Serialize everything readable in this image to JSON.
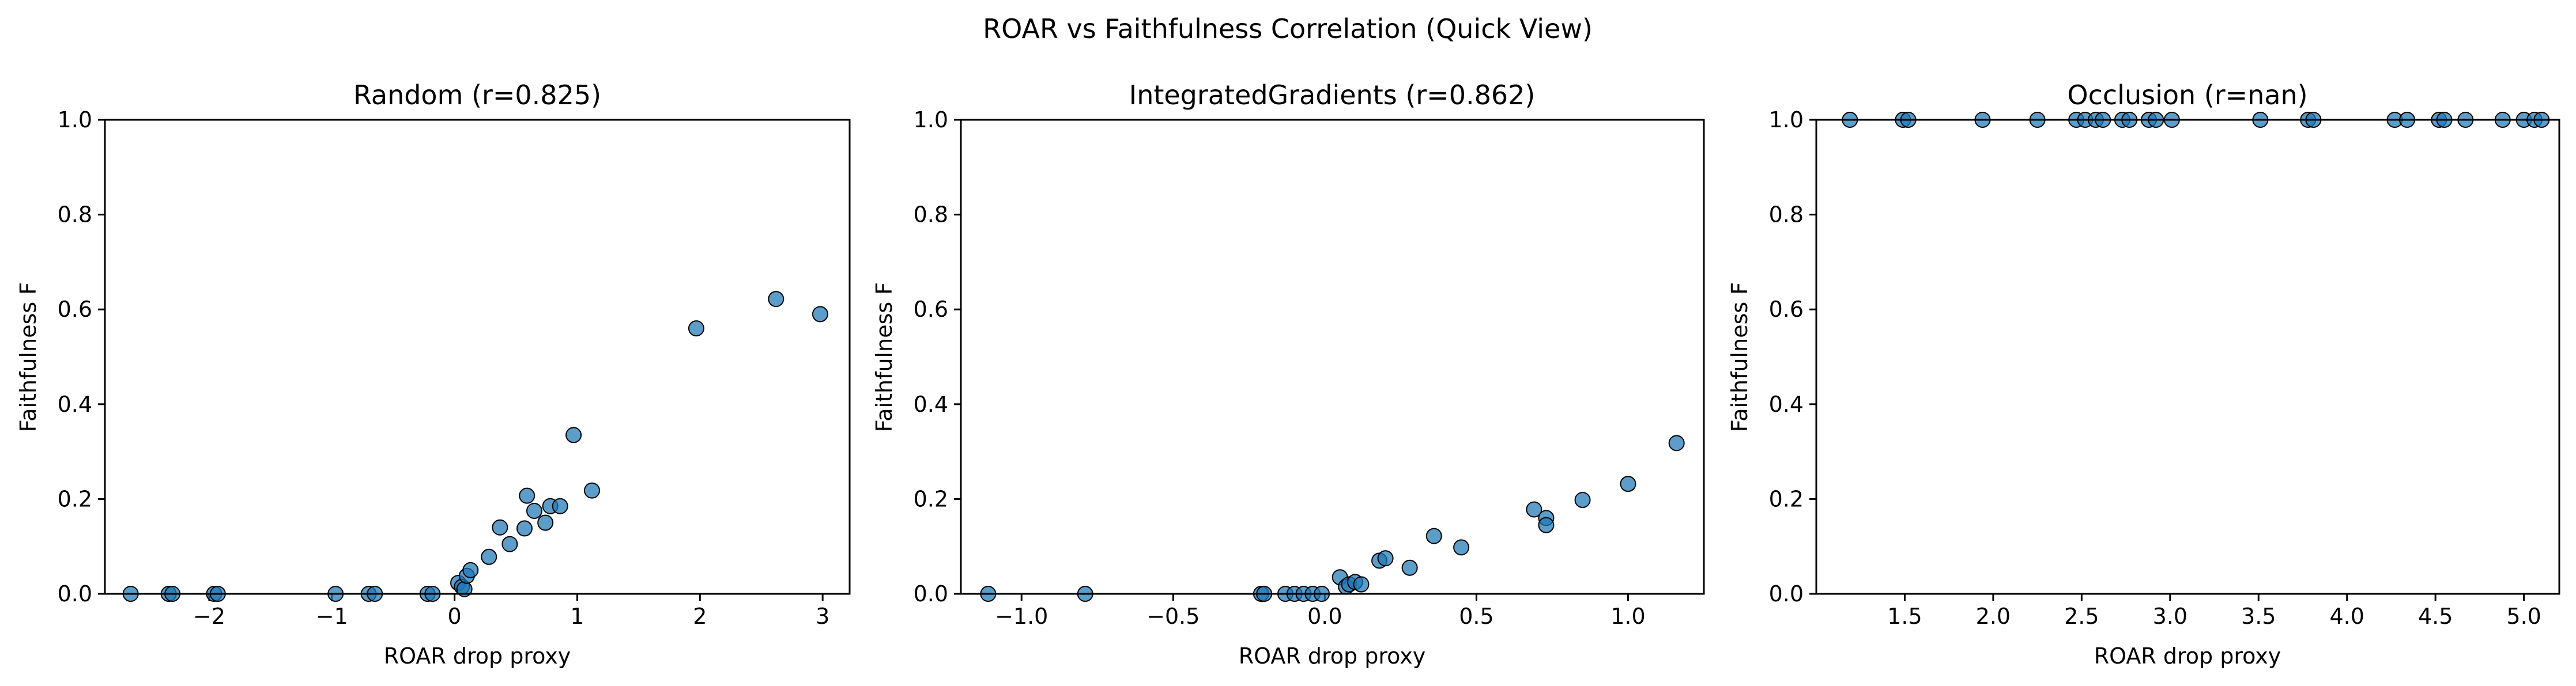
{
  "figure": {
    "suptitle": "ROAR vs Faithfulness Correlation (Quick View)"
  },
  "chart_data": [
    {
      "type": "scatter",
      "title": "Random (r=0.825)",
      "xlabel": "ROAR drop proxy",
      "ylabel": "Faithfulness F",
      "xlim": [
        -2.85,
        3.22
      ],
      "ylim": [
        0,
        1
      ],
      "xticks": [
        -2,
        -1,
        0,
        1,
        2,
        3
      ],
      "xtick_labels": [
        "−2",
        "−1",
        "0",
        "1",
        "2",
        "3"
      ],
      "yticks": [
        0,
        0.2,
        0.4,
        0.6,
        0.8,
        1.0
      ],
      "ytick_labels": [
        "0.0",
        "0.2",
        "0.4",
        "0.6",
        "0.8",
        "1.0"
      ],
      "marker_color": "#1f77b4",
      "points": [
        {
          "x": -2.64,
          "y": 0.0
        },
        {
          "x": -2.33,
          "y": 0.0
        },
        {
          "x": -2.3,
          "y": 0.0
        },
        {
          "x": -1.96,
          "y": 0.0
        },
        {
          "x": -1.93,
          "y": 0.0
        },
        {
          "x": -0.97,
          "y": 0.0
        },
        {
          "x": -0.7,
          "y": 0.0
        },
        {
          "x": -0.65,
          "y": 0.0
        },
        {
          "x": -0.22,
          "y": 0.0
        },
        {
          "x": -0.18,
          "y": 0.0
        },
        {
          "x": 0.03,
          "y": 0.023
        },
        {
          "x": 0.06,
          "y": 0.015
        },
        {
          "x": 0.08,
          "y": 0.01
        },
        {
          "x": 0.1,
          "y": 0.038
        },
        {
          "x": 0.13,
          "y": 0.05
        },
        {
          "x": 0.28,
          "y": 0.078
        },
        {
          "x": 0.37,
          "y": 0.14
        },
        {
          "x": 0.45,
          "y": 0.105
        },
        {
          "x": 0.57,
          "y": 0.138
        },
        {
          "x": 0.59,
          "y": 0.207
        },
        {
          "x": 0.65,
          "y": 0.175
        },
        {
          "x": 0.74,
          "y": 0.15
        },
        {
          "x": 0.78,
          "y": 0.185
        },
        {
          "x": 0.86,
          "y": 0.185
        },
        {
          "x": 0.97,
          "y": 0.335
        },
        {
          "x": 1.12,
          "y": 0.218
        },
        {
          "x": 1.97,
          "y": 0.56
        },
        {
          "x": 2.62,
          "y": 0.622
        },
        {
          "x": 2.98,
          "y": 0.59
        }
      ]
    },
    {
      "type": "scatter",
      "title": "IntegratedGradients (r=0.862)",
      "xlabel": "ROAR drop proxy",
      "ylabel": "Faithfulness F",
      "xlim": [
        -1.2,
        1.25
      ],
      "ylim": [
        0,
        1
      ],
      "xticks": [
        -1.0,
        -0.5,
        0.0,
        0.5,
        1.0
      ],
      "xtick_labels": [
        "−1.0",
        "−0.5",
        "0.0",
        "0.5",
        "1.0"
      ],
      "yticks": [
        0,
        0.2,
        0.4,
        0.6,
        0.8,
        1.0
      ],
      "ytick_labels": [
        "0.0",
        "0.2",
        "0.4",
        "0.6",
        "0.8",
        "1.0"
      ],
      "marker_color": "#1f77b4",
      "points": [
        {
          "x": -1.11,
          "y": 0.0
        },
        {
          "x": -0.79,
          "y": 0.0
        },
        {
          "x": -0.21,
          "y": 0.0
        },
        {
          "x": -0.2,
          "y": 0.0
        },
        {
          "x": -0.13,
          "y": 0.0
        },
        {
          "x": -0.1,
          "y": 0.0
        },
        {
          "x": -0.07,
          "y": 0.0
        },
        {
          "x": -0.04,
          "y": 0.0
        },
        {
          "x": -0.01,
          "y": 0.0
        },
        {
          "x": 0.05,
          "y": 0.035
        },
        {
          "x": 0.07,
          "y": 0.015
        },
        {
          "x": 0.08,
          "y": 0.02
        },
        {
          "x": 0.1,
          "y": 0.025
        },
        {
          "x": 0.12,
          "y": 0.02
        },
        {
          "x": 0.18,
          "y": 0.07
        },
        {
          "x": 0.2,
          "y": 0.075
        },
        {
          "x": 0.28,
          "y": 0.055
        },
        {
          "x": 0.36,
          "y": 0.122
        },
        {
          "x": 0.45,
          "y": 0.098
        },
        {
          "x": 0.69,
          "y": 0.178
        },
        {
          "x": 0.73,
          "y": 0.16
        },
        {
          "x": 0.73,
          "y": 0.145
        },
        {
          "x": 0.85,
          "y": 0.198
        },
        {
          "x": 1.0,
          "y": 0.232
        },
        {
          "x": 1.16,
          "y": 0.318
        }
      ]
    },
    {
      "type": "scatter",
      "title": "Occlusion (r=nan)",
      "xlabel": "ROAR drop proxy",
      "ylabel": "Faithfulness F",
      "xlim": [
        1.0,
        5.2
      ],
      "ylim": [
        0,
        1
      ],
      "xticks": [
        1.5,
        2.0,
        2.5,
        3.0,
        3.5,
        4.0,
        4.5,
        5.0
      ],
      "xtick_labels": [
        "1.5",
        "2.0",
        "2.5",
        "3.0",
        "3.5",
        "4.0",
        "4.5",
        "5.0"
      ],
      "yticks": [
        0,
        0.2,
        0.4,
        0.6,
        0.8,
        1.0
      ],
      "ytick_labels": [
        "0.0",
        "0.2",
        "0.4",
        "0.6",
        "0.8",
        "1.0"
      ],
      "marker_color": "#1f77b4",
      "points": [
        {
          "x": 1.19,
          "y": 1.0
        },
        {
          "x": 1.49,
          "y": 1.0
        },
        {
          "x": 1.52,
          "y": 1.0
        },
        {
          "x": 1.94,
          "y": 1.0
        },
        {
          "x": 2.25,
          "y": 1.0
        },
        {
          "x": 2.47,
          "y": 1.0
        },
        {
          "x": 2.52,
          "y": 1.0
        },
        {
          "x": 2.58,
          "y": 1.0
        },
        {
          "x": 2.62,
          "y": 1.0
        },
        {
          "x": 2.73,
          "y": 1.0
        },
        {
          "x": 2.77,
          "y": 1.0
        },
        {
          "x": 2.88,
          "y": 1.0
        },
        {
          "x": 2.92,
          "y": 1.0
        },
        {
          "x": 3.01,
          "y": 1.0
        },
        {
          "x": 3.51,
          "y": 1.0
        },
        {
          "x": 3.78,
          "y": 1.0
        },
        {
          "x": 3.81,
          "y": 1.0
        },
        {
          "x": 4.27,
          "y": 1.0
        },
        {
          "x": 4.34,
          "y": 1.0
        },
        {
          "x": 4.52,
          "y": 1.0
        },
        {
          "x": 4.55,
          "y": 1.0
        },
        {
          "x": 4.67,
          "y": 1.0
        },
        {
          "x": 4.88,
          "y": 1.0
        },
        {
          "x": 5.0,
          "y": 1.0
        },
        {
          "x": 5.06,
          "y": 1.0
        },
        {
          "x": 5.1,
          "y": 1.0
        }
      ]
    }
  ]
}
